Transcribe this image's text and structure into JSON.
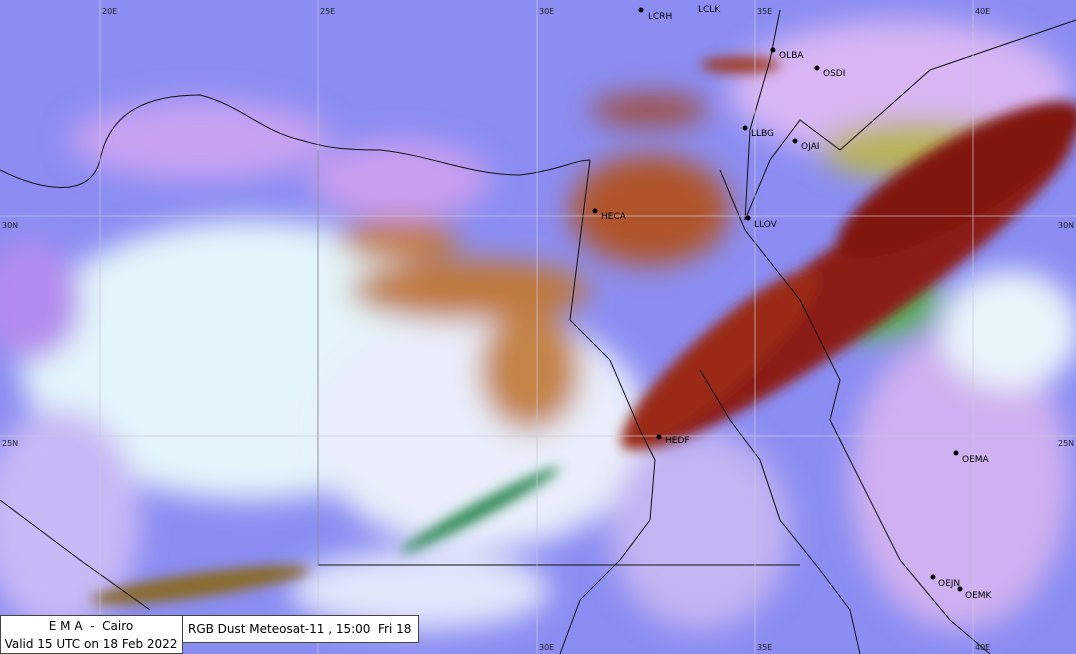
{
  "grid_labels": {
    "top": [
      "20E",
      "25E",
      "30E",
      "35E",
      "40E"
    ],
    "bottom": [
      "30E",
      "35E",
      "40E"
    ],
    "left": [
      "30N",
      "25N"
    ],
    "right": [
      "30N",
      "25N"
    ]
  },
  "stations": [
    "LCRH",
    "LCLK",
    "OLBA",
    "OSDI",
    "LLBG",
    "OJAI",
    "HECA",
    "LLOV",
    "HEDF",
    "OEMA",
    "OEJN",
    "OEMK"
  ],
  "info": {
    "agency": "E M A  -  Cairo",
    "valid": "Valid 15 UTC on 18 Feb 2022",
    "product": "RGB Dust Meteosat-11 , 15:00  Fri 18"
  }
}
